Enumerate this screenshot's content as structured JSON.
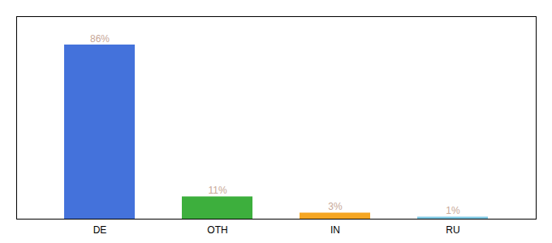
{
  "chart_data": {
    "type": "bar",
    "categories": [
      "DE",
      "OTH",
      "IN",
      "RU"
    ],
    "values": [
      86,
      11,
      3,
      1
    ],
    "value_labels": [
      "86%",
      "11%",
      "3%",
      "1%"
    ],
    "colors": [
      "#4472db",
      "#3daf3d",
      "#f5a623",
      "#7ec8e3"
    ],
    "ylim": [
      0,
      100
    ],
    "data_labels": true,
    "tick_labels": "x"
  }
}
